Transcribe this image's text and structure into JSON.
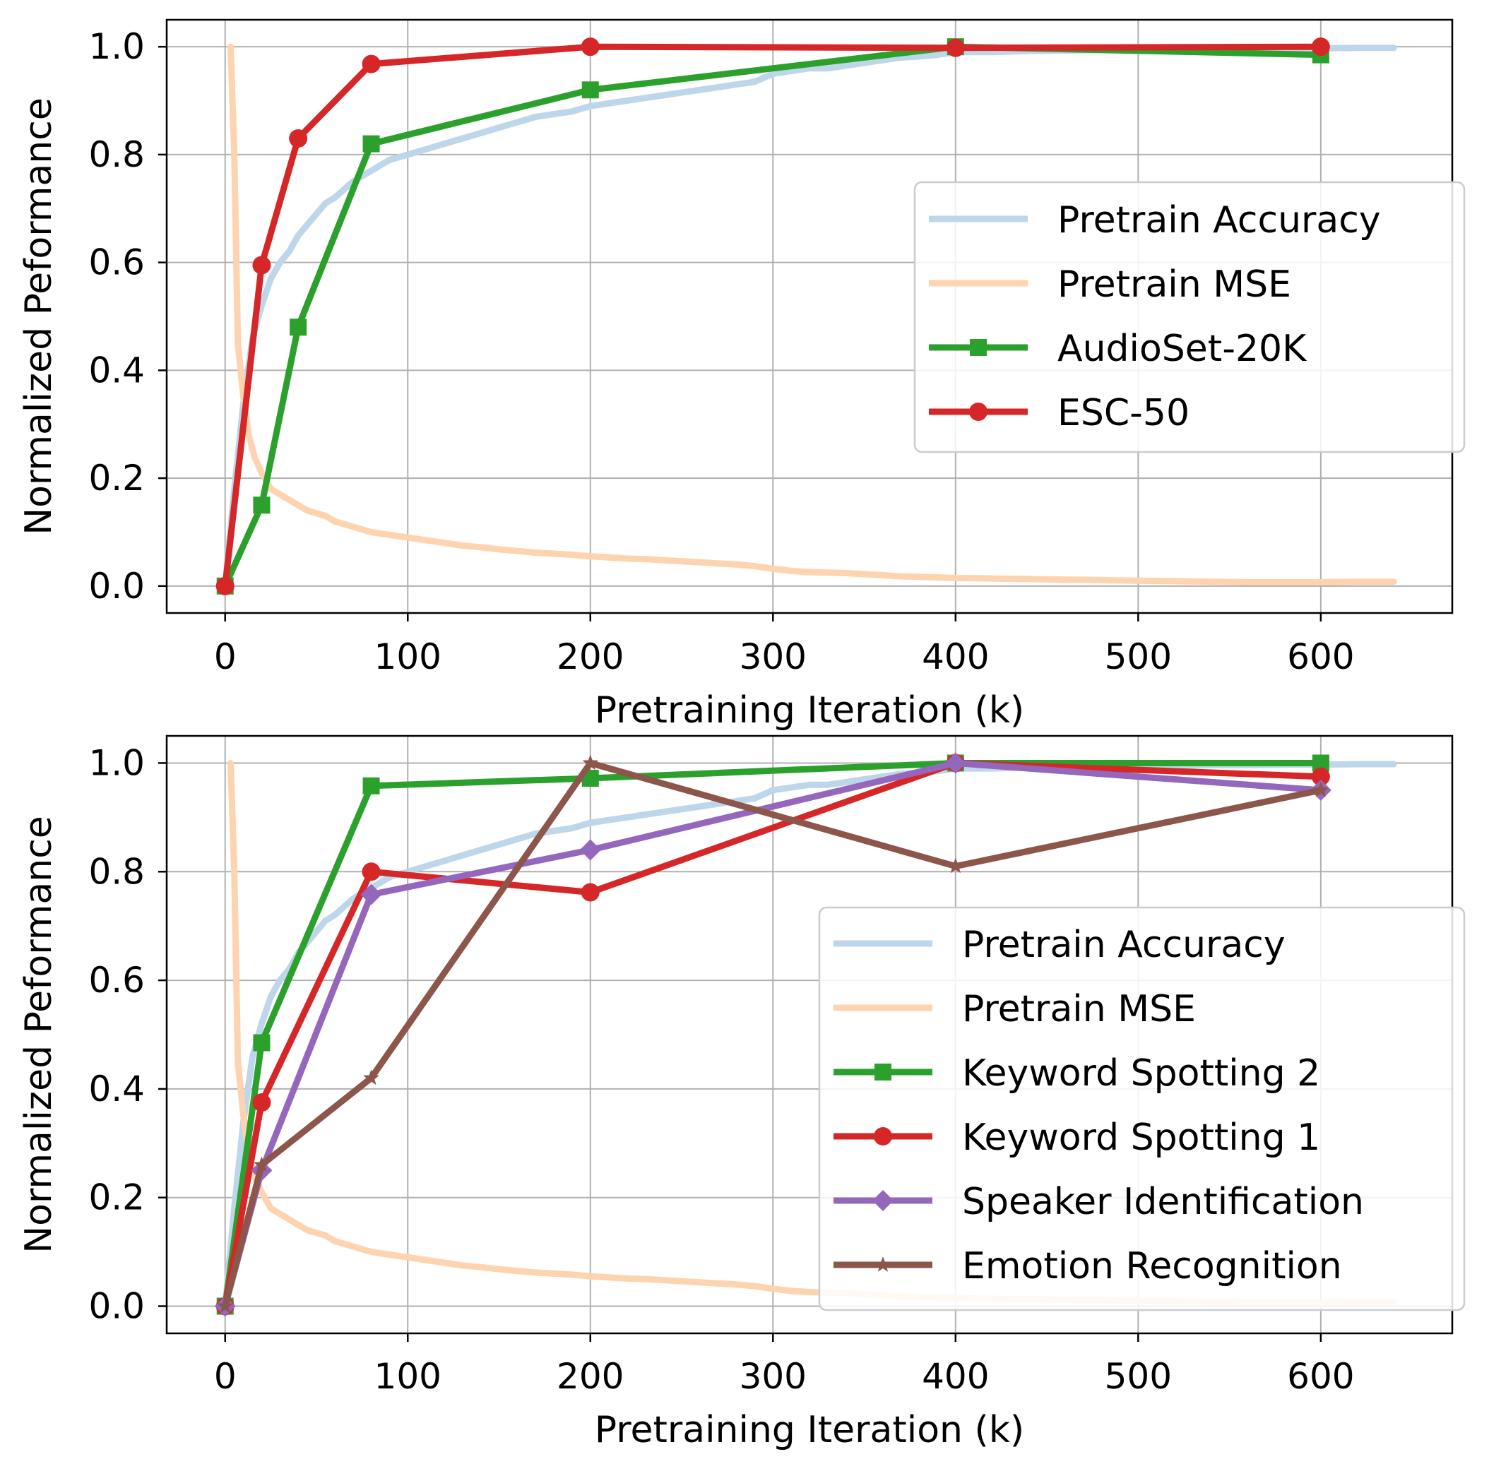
{
  "chart_data": [
    {
      "type": "line",
      "id": "top",
      "xlabel": "Pretraining Iteration (k)",
      "ylabel": "Normalized Peformance",
      "xlim": [
        -32,
        672
      ],
      "ylim": [
        -0.05,
        1.05
      ],
      "xticks": [
        0,
        100,
        200,
        300,
        400,
        500,
        600
      ],
      "yticks": [
        0.0,
        0.2,
        0.4,
        0.6,
        0.8,
        1.0
      ],
      "xtick_labels": [
        "0",
        "100",
        "200",
        "300",
        "400",
        "500",
        "600"
      ],
      "ytick_labels": [
        "0.0",
        "0.2",
        "0.4",
        "0.6",
        "0.8",
        "1.0"
      ],
      "grid": true,
      "legend_position": "center-right",
      "series": [
        {
          "name": "Pretrain Accuracy",
          "color": "#bed6ea",
          "marker": "none",
          "width": 9,
          "x": [
            0,
            5,
            10,
            15,
            20,
            25,
            30,
            35,
            40,
            45,
            50,
            55,
            60,
            70,
            80,
            90,
            100,
            110,
            120,
            130,
            140,
            150,
            160,
            170,
            180,
            190,
            200,
            210,
            220,
            230,
            240,
            250,
            260,
            270,
            280,
            290,
            300,
            310,
            320,
            330,
            340,
            350,
            360,
            370,
            380,
            390,
            400,
            420,
            440,
            460,
            480,
            500,
            520,
            540,
            560,
            580,
            600,
            620,
            640
          ],
          "y": [
            0.0,
            0.18,
            0.34,
            0.46,
            0.52,
            0.57,
            0.6,
            0.62,
            0.65,
            0.67,
            0.69,
            0.71,
            0.72,
            0.75,
            0.77,
            0.79,
            0.8,
            0.81,
            0.82,
            0.83,
            0.84,
            0.85,
            0.86,
            0.87,
            0.875,
            0.88,
            0.89,
            0.895,
            0.9,
            0.905,
            0.91,
            0.915,
            0.92,
            0.925,
            0.93,
            0.935,
            0.95,
            0.955,
            0.96,
            0.96,
            0.965,
            0.97,
            0.975,
            0.98,
            0.982,
            0.985,
            0.99,
            0.99,
            0.992,
            0.993,
            0.994,
            0.995,
            0.995,
            0.996,
            0.996,
            0.997,
            0.997,
            0.998,
            0.998
          ]
        },
        {
          "name": "Pretrain MSE",
          "color": "#fed3af",
          "marker": "none",
          "width": 9,
          "x": [
            3,
            5,
            7,
            10,
            13,
            16,
            20,
            25,
            30,
            35,
            40,
            45,
            50,
            55,
            60,
            70,
            80,
            90,
            100,
            110,
            120,
            130,
            140,
            150,
            160,
            170,
            180,
            190,
            200,
            210,
            220,
            230,
            240,
            250,
            260,
            270,
            280,
            290,
            300,
            310,
            320,
            330,
            340,
            350,
            360,
            370,
            380,
            390,
            400,
            420,
            440,
            460,
            480,
            500,
            520,
            540,
            560,
            580,
            600,
            620,
            640
          ],
          "y": [
            1.0,
            0.8,
            0.45,
            0.35,
            0.28,
            0.24,
            0.21,
            0.18,
            0.17,
            0.16,
            0.15,
            0.14,
            0.135,
            0.13,
            0.12,
            0.11,
            0.1,
            0.095,
            0.09,
            0.085,
            0.08,
            0.075,
            0.072,
            0.068,
            0.065,
            0.062,
            0.06,
            0.058,
            0.055,
            0.053,
            0.051,
            0.05,
            0.048,
            0.046,
            0.044,
            0.042,
            0.04,
            0.037,
            0.032,
            0.028,
            0.026,
            0.025,
            0.024,
            0.022,
            0.02,
            0.018,
            0.017,
            0.016,
            0.015,
            0.014,
            0.013,
            0.012,
            0.011,
            0.01,
            0.009,
            0.008,
            0.007,
            0.007,
            0.007,
            0.008,
            0.008
          ]
        },
        {
          "name": "AudioSet-20K",
          "color": "#2ca02c",
          "marker": "square",
          "width": 9,
          "x": [
            0,
            20,
            40,
            80,
            200,
            400,
            600
          ],
          "y": [
            0.0,
            0.15,
            0.48,
            0.82,
            0.92,
            1.0,
            0.985
          ]
        },
        {
          "name": "ESC-50",
          "color": "#d62728",
          "marker": "circle",
          "width": 9,
          "x": [
            0,
            20,
            40,
            80,
            200,
            400,
            600
          ],
          "y": [
            0.0,
            0.595,
            0.83,
            0.968,
            1.0,
            0.998,
            1.0
          ]
        }
      ]
    },
    {
      "type": "line",
      "id": "bottom",
      "xlabel": "Pretraining Iteration (k)",
      "ylabel": "Normalized Peformance",
      "xlim": [
        -32,
        672
      ],
      "ylim": [
        -0.05,
        1.05
      ],
      "xticks": [
        0,
        100,
        200,
        300,
        400,
        500,
        600
      ],
      "yticks": [
        0.0,
        0.2,
        0.4,
        0.6,
        0.8,
        1.0
      ],
      "xtick_labels": [
        "0",
        "100",
        "200",
        "300",
        "400",
        "500",
        "600"
      ],
      "ytick_labels": [
        "0.0",
        "0.2",
        "0.4",
        "0.6",
        "0.8",
        "1.0"
      ],
      "grid": true,
      "legend_position": "lower-right",
      "series": [
        {
          "name": "Pretrain Accuracy",
          "color": "#bed6ea",
          "marker": "none",
          "width": 9,
          "x": [
            0,
            5,
            10,
            15,
            20,
            25,
            30,
            35,
            40,
            45,
            50,
            55,
            60,
            70,
            80,
            90,
            100,
            110,
            120,
            130,
            140,
            150,
            160,
            170,
            180,
            190,
            200,
            210,
            220,
            230,
            240,
            250,
            260,
            270,
            280,
            290,
            300,
            310,
            320,
            330,
            340,
            350,
            360,
            370,
            380,
            390,
            400,
            420,
            440,
            460,
            480,
            500,
            520,
            540,
            560,
            580,
            600,
            620,
            640
          ],
          "y": [
            0.0,
            0.18,
            0.34,
            0.46,
            0.52,
            0.57,
            0.6,
            0.62,
            0.65,
            0.67,
            0.69,
            0.71,
            0.72,
            0.75,
            0.77,
            0.79,
            0.8,
            0.81,
            0.82,
            0.83,
            0.84,
            0.85,
            0.86,
            0.87,
            0.875,
            0.88,
            0.89,
            0.895,
            0.9,
            0.905,
            0.91,
            0.915,
            0.92,
            0.925,
            0.93,
            0.935,
            0.95,
            0.955,
            0.96,
            0.96,
            0.965,
            0.97,
            0.975,
            0.98,
            0.982,
            0.985,
            0.99,
            0.99,
            0.992,
            0.993,
            0.994,
            0.995,
            0.995,
            0.996,
            0.996,
            0.997,
            0.997,
            0.998,
            0.998
          ]
        },
        {
          "name": "Pretrain MSE",
          "color": "#fed3af",
          "marker": "none",
          "width": 9,
          "x": [
            3,
            5,
            7,
            10,
            13,
            16,
            20,
            25,
            30,
            35,
            40,
            45,
            50,
            55,
            60,
            70,
            80,
            90,
            100,
            110,
            120,
            130,
            140,
            150,
            160,
            170,
            180,
            190,
            200,
            210,
            220,
            230,
            240,
            250,
            260,
            270,
            280,
            290,
            300,
            310,
            320,
            330,
            340,
            350,
            360,
            370,
            380,
            390,
            400,
            420,
            440,
            460,
            480,
            500,
            520,
            540,
            560,
            580,
            600,
            620,
            640
          ],
          "y": [
            1.0,
            0.8,
            0.45,
            0.35,
            0.28,
            0.24,
            0.21,
            0.18,
            0.17,
            0.16,
            0.15,
            0.14,
            0.135,
            0.13,
            0.12,
            0.11,
            0.1,
            0.095,
            0.09,
            0.085,
            0.08,
            0.075,
            0.072,
            0.068,
            0.065,
            0.062,
            0.06,
            0.058,
            0.055,
            0.053,
            0.051,
            0.05,
            0.048,
            0.046,
            0.044,
            0.042,
            0.04,
            0.037,
            0.032,
            0.028,
            0.026,
            0.025,
            0.024,
            0.022,
            0.02,
            0.018,
            0.017,
            0.016,
            0.015,
            0.014,
            0.013,
            0.012,
            0.011,
            0.01,
            0.009,
            0.008,
            0.007,
            0.007,
            0.007,
            0.008,
            0.008
          ]
        },
        {
          "name": "Keyword Spotting 2",
          "color": "#2ca02c",
          "marker": "square",
          "width": 9,
          "x": [
            0,
            20,
            80,
            200,
            400,
            600
          ],
          "y": [
            0.0,
            0.485,
            0.958,
            0.972,
            1.0,
            1.0
          ]
        },
        {
          "name": "Keyword Spotting 1",
          "color": "#d62728",
          "marker": "circle",
          "width": 9,
          "x": [
            0,
            20,
            80,
            200,
            400,
            600
          ],
          "y": [
            0.0,
            0.375,
            0.8,
            0.762,
            1.0,
            0.975
          ]
        },
        {
          "name": "Speaker Identification",
          "color": "#9467bd",
          "marker": "diamond",
          "width": 9,
          "x": [
            0,
            20,
            80,
            200,
            400,
            600
          ],
          "y": [
            0.0,
            0.25,
            0.758,
            0.84,
            1.0,
            0.95
          ]
        },
        {
          "name": "Emotion Recognition",
          "color": "#8c564b",
          "marker": "star",
          "width": 9,
          "x": [
            0,
            20,
            80,
            200,
            400,
            600
          ],
          "y": [
            0.0,
            0.26,
            0.42,
            1.0,
            0.81,
            0.95
          ]
        }
      ]
    }
  ]
}
